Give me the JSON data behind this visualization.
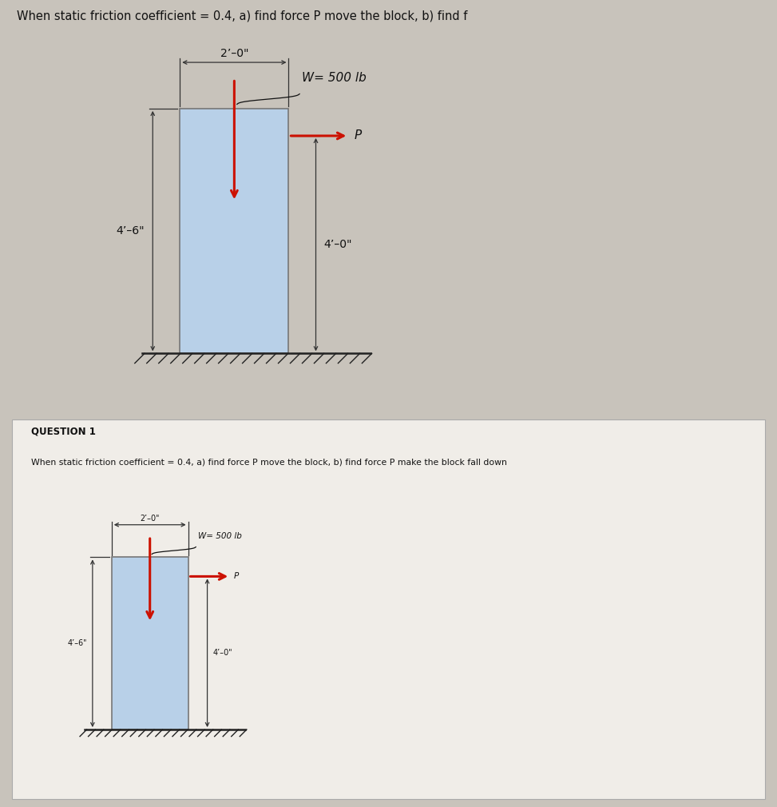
{
  "bg_top": "#c8c3bb",
  "bg_bottom": "#c5c0b8",
  "bg_card": "#f0ede8",
  "block_color": "#b8d0e8",
  "block_edge_color": "#777777",
  "ground_color": "#222222",
  "arrow_w_color": "#cc1100",
  "arrow_p_color": "#cc1100",
  "dim_color": "#333333",
  "text_color": "#111111",
  "title_top": "When static friction coefficient = 0.4, a) find force P move the block, b) find f",
  "title_bottom": "When static friction coefficient = 0.4, a) find force P move the block, b) find force P make the block fall down",
  "question_label": "QUESTION 1",
  "p_label": "P",
  "dim_top": "2’–0\"",
  "dim_left": "4’–6\"",
  "dim_right": "4’–0\"",
  "weight_label": "W= 500 lb"
}
